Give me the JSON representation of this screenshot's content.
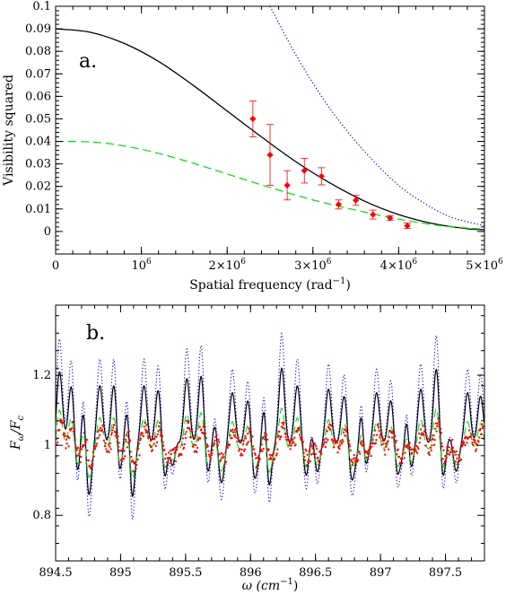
{
  "chart_data": [
    {
      "type": "scatter",
      "panel_label": "a.",
      "xlabel": "Spatial frequency (rad",
      "xlabel_sup": "−1",
      "xlabel_end": ")",
      "ylabel": "Visibility squared",
      "xlim": [
        0,
        5000000
      ],
      "ylim": [
        -0.01,
        0.1
      ],
      "x_ticks": [
        {
          "value": 0,
          "label": "0"
        },
        {
          "value": 1000000,
          "label": "10",
          "sup": "6"
        },
        {
          "value": 2000000,
          "label": "2×10",
          "sup": "6"
        },
        {
          "value": 3000000,
          "label": "3×10",
          "sup": "6"
        },
        {
          "value": 4000000,
          "label": "4×10",
          "sup": "6"
        },
        {
          "value": 5000000,
          "label": "5×10",
          "sup": "6"
        }
      ],
      "y_ticks": [
        {
          "value": 0,
          "label": "0"
        },
        {
          "value": 0.01,
          "label": "0.01"
        },
        {
          "value": 0.02,
          "label": "0.02"
        },
        {
          "value": 0.03,
          "label": "0.03"
        },
        {
          "value": 0.04,
          "label": "0.04"
        },
        {
          "value": 0.05,
          "label": "0.05"
        },
        {
          "value": 0.06,
          "label": "0.06"
        },
        {
          "value": 0.07,
          "label": "0.07"
        },
        {
          "value": 0.08,
          "label": "0.08"
        },
        {
          "value": 0.09,
          "label": "0.09"
        },
        {
          "value": 0.1,
          "label": "0.1"
        }
      ],
      "series": [
        {
          "style": "solid",
          "color": "#000000",
          "x": [
            0,
            400000,
            800000,
            1200000,
            1600000,
            2000000,
            2400000,
            2800000,
            3200000,
            3600000,
            4000000,
            4400000,
            4800000,
            5000000
          ],
          "y": [
            0.09,
            0.0885,
            0.0835,
            0.0755,
            0.065,
            0.0535,
            0.042,
            0.031,
            0.0215,
            0.0135,
            0.0075,
            0.0035,
            0.0012,
            0.0008
          ]
        },
        {
          "style": "dotted",
          "color": "#0000ff",
          "x": [
            2500000,
            2800000,
            3100000,
            3400000,
            3700000,
            4000000,
            4300000,
            4600000,
            5000000
          ],
          "y": [
            0.1,
            0.0785,
            0.06,
            0.0445,
            0.0315,
            0.0205,
            0.0125,
            0.0065,
            0.0025
          ]
        },
        {
          "style": "dashed",
          "color": "#00dd00",
          "x": [
            0,
            500000,
            1000000,
            1500000,
            2000000,
            2500000,
            3000000,
            3500000,
            4000000,
            4500000,
            5000000
          ],
          "y": [
            0.04,
            0.0395,
            0.0365,
            0.0315,
            0.0255,
            0.0195,
            0.014,
            0.0095,
            0.0055,
            0.0025,
            0.001
          ]
        },
        {
          "style": "points",
          "color": "#ff0000",
          "x": [
            2300000,
            2500000,
            2700000,
            2900000,
            3100000,
            3300000,
            3500000,
            3700000,
            3900000,
            4100000
          ],
          "y": [
            0.05,
            0.034,
            0.0205,
            0.027,
            0.0245,
            0.012,
            0.0138,
            0.0075,
            0.006,
            0.0025
          ],
          "err": [
            0.008,
            0.0135,
            0.0065,
            0.0055,
            0.0038,
            0.002,
            0.0022,
            0.002,
            0.001,
            0.0012
          ]
        }
      ]
    },
    {
      "type": "line",
      "panel_label": "b.",
      "xlabel": "ω (cm",
      "xlabel_sup": "−1",
      "xlabel_end": ")",
      "ylabel": "F",
      "ylabel_sub1": "ω",
      "ylabel_mid": "/F",
      "ylabel_sub2": "c",
      "xlim": [
        894.5,
        897.8
      ],
      "ylim": [
        0.67,
        1.4
      ],
      "x_ticks": [
        {
          "value": 894.5,
          "label": "894.5"
        },
        {
          "value": 895,
          "label": "895"
        },
        {
          "value": 895.5,
          "label": "895.5"
        },
        {
          "value": 896,
          "label": "896"
        },
        {
          "value": 896.5,
          "label": "896.5"
        },
        {
          "value": 897,
          "label": "897"
        },
        {
          "value": 897.5,
          "label": "897.5"
        }
      ],
      "y_ticks": [
        {
          "value": 0.8,
          "label": "0.8"
        },
        {
          "value": 1,
          "label": "1"
        },
        {
          "value": 1.2,
          "label": "1.2"
        }
      ],
      "spectral_lines": [
        {
          "w": 894.53,
          "s": 0.21,
          "d": -0.07
        },
        {
          "w": 894.62,
          "s": 0.17,
          "d": 0.14
        },
        {
          "w": 894.72,
          "s": 0.15,
          "d": -0.05
        },
        {
          "w": 894.84,
          "s": 0.17,
          "d": -0.1
        },
        {
          "w": 894.95,
          "s": 0.18,
          "d": 0.13
        },
        {
          "w": 895.06,
          "s": 0.15,
          "d": -0.07
        },
        {
          "w": 895.18,
          "s": 0.17,
          "d": -0.09
        },
        {
          "w": 895.29,
          "s": 0.16,
          "d": 0.11
        },
        {
          "w": 895.4,
          "s": 0.16,
          "d": -0.06
        },
        {
          "w": 895.51,
          "s": 0.19,
          "d": -0.11
        },
        {
          "w": 895.62,
          "s": 0.2,
          "d": 0.13
        },
        {
          "w": 895.74,
          "s": 0.14,
          "d": -0.07
        },
        {
          "w": 895.86,
          "s": 0.15,
          "d": -0.08
        },
        {
          "w": 895.98,
          "s": 0.13,
          "d": 0.1
        },
        {
          "w": 896.1,
          "s": 0.16,
          "d": -0.07
        },
        {
          "w": 896.24,
          "s": 0.22,
          "d": -0.1
        },
        {
          "w": 896.36,
          "s": 0.17,
          "d": 0.12
        },
        {
          "w": 896.48,
          "s": 0.15,
          "d": -0.05
        },
        {
          "w": 896.6,
          "s": 0.16,
          "d": -0.09
        },
        {
          "w": 896.72,
          "s": 0.14,
          "d": 0.11
        },
        {
          "w": 896.85,
          "s": 0.16,
          "d": -0.07
        },
        {
          "w": 896.97,
          "s": 0.15,
          "d": -0.09
        },
        {
          "w": 897.08,
          "s": 0.13,
          "d": 0.1
        },
        {
          "w": 897.2,
          "s": 0.14,
          "d": -0.07
        },
        {
          "w": 897.31,
          "s": 0.16,
          "d": -0.08
        },
        {
          "w": 897.43,
          "s": 0.22,
          "d": 0.12
        },
        {
          "w": 897.55,
          "s": 0.16,
          "d": -0.07
        },
        {
          "w": 897.67,
          "s": 0.15,
          "d": -0.09
        },
        {
          "w": 897.77,
          "s": 0.14,
          "d": 0.1
        }
      ],
      "line_width": 0.022,
      "series": [
        {
          "style": "solid",
          "color": "#000000",
          "amp": 1.0,
          "base": 1.0
        },
        {
          "style": "dotted",
          "color": "#0000ff",
          "amp": 1.45,
          "base": 1.0
        },
        {
          "style": "dashed",
          "color": "#00dd00",
          "amp": 0.55,
          "base": 0.985
        },
        {
          "style": "points",
          "color": "#ff0000",
          "amp": 0.35,
          "base": 0.99,
          "noise": 0.045
        }
      ]
    }
  ]
}
